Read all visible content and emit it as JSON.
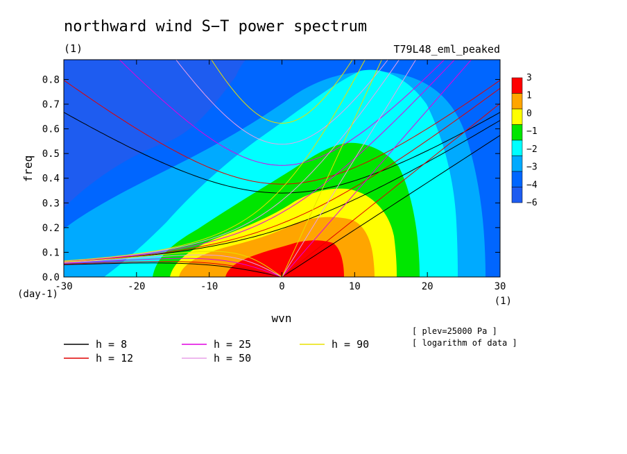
{
  "chart_data": {
    "type": "heatmap",
    "title": "northward wind S−T power spectrum",
    "unit_left": "(1)",
    "experiment": "T79L48_eml_peaked",
    "xlabel": "wvn",
    "ylabel": "freq",
    "x_unit": "(1)",
    "y_unit": "(day-1)",
    "xlim": [
      -30,
      30
    ],
    "ylim": [
      0,
      0.88
    ],
    "x_ticks": [
      -30,
      -20,
      -10,
      0,
      10,
      20,
      30
    ],
    "y_ticks": [
      0.0,
      0.1,
      0.2,
      0.3,
      0.4,
      0.5,
      0.6,
      0.7,
      0.8
    ],
    "colorbar": {
      "labels": [
        "3",
        "1",
        "0",
        "−1",
        "−2",
        "−3",
        "−4",
        "−6"
      ],
      "colors": [
        "#ff0000",
        "#ffa500",
        "#ffff00",
        "#00e600",
        "#00ffff",
        "#00aaff",
        "#0066ff",
        "#1e5cf0"
      ]
    },
    "contour_levels": [
      {
        "name": "-6",
        "color": "#1e5cf0"
      },
      {
        "name": "-4",
        "color": "#0066ff"
      },
      {
        "name": "-3",
        "color": "#00aaff"
      },
      {
        "name": "-2",
        "color": "#00ffff"
      },
      {
        "name": "-1",
        "color": "#00e600"
      },
      {
        "name": "0",
        "color": "#ffff00"
      },
      {
        "name": "1",
        "color": "#ffa500"
      },
      {
        "name": "3",
        "color": "#ff0000"
      }
    ],
    "dispersion_curves": [
      {
        "h": 8,
        "label": "h =  8",
        "color": "#000000",
        "wig_minimum": [
          -4,
          0.335
        ]
      },
      {
        "h": 12,
        "label": "h = 12",
        "color": "#e00000",
        "wig_minimum": [
          -3,
          0.37
        ]
      },
      {
        "h": 25,
        "label": "h = 25",
        "color": "#e000e0",
        "wig_minimum": [
          -2,
          0.445
        ]
      },
      {
        "h": 50,
        "label": "h = 50",
        "color": "#e8a0e8",
        "wig_minimum": [
          -1,
          0.53
        ]
      },
      {
        "h": 90,
        "label": "h = 90",
        "color": "#e8e000",
        "wig_minimum": [
          -1,
          0.61
        ]
      }
    ],
    "notes": [
      "[ plev=25000 Pa ]",
      "[ logarithm of data ]"
    ]
  }
}
